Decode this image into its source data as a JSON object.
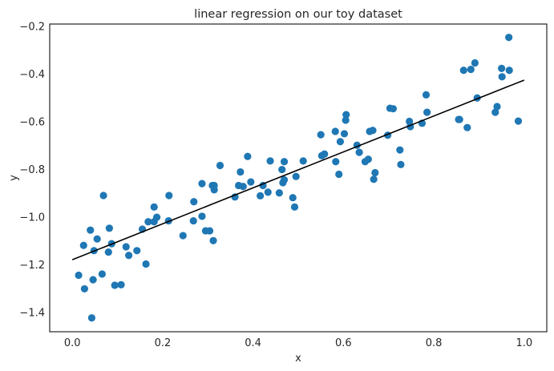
{
  "chart_data": {
    "type": "scatter",
    "title": "linear regression on our toy dataset",
    "xlabel": "x",
    "ylabel": "y",
    "xlim": [
      -0.05,
      1.05
    ],
    "ylim": [
      -1.48,
      -0.19
    ],
    "xticks": [
      0.0,
      0.2,
      0.4,
      0.6,
      0.8,
      1.0
    ],
    "xtick_labels": [
      "0.0",
      "0.2",
      "0.4",
      "0.6",
      "0.8",
      "1.0"
    ],
    "yticks": [
      -1.4,
      -1.2,
      -1.0,
      -0.8,
      -0.6,
      -0.4,
      -0.2
    ],
    "ytick_labels": [
      "−1.4",
      "−1.2",
      "−1.0",
      "−0.8",
      "−0.6",
      "−0.4",
      "−0.2"
    ],
    "grid": false,
    "point_color": "#1f77b4",
    "line_color": "#000000",
    "points": [
      [
        0.014,
        -1.243
      ],
      [
        0.025,
        -1.118
      ],
      [
        0.027,
        -1.3
      ],
      [
        0.04,
        -1.054
      ],
      [
        0.043,
        -1.422
      ],
      [
        0.046,
        -1.262
      ],
      [
        0.048,
        -1.14
      ],
      [
        0.055,
        -1.091
      ],
      [
        0.066,
        -1.238
      ],
      [
        0.069,
        -0.909
      ],
      [
        0.08,
        -1.146
      ],
      [
        0.082,
        -1.046
      ],
      [
        0.087,
        -1.111
      ],
      [
        0.094,
        -1.285
      ],
      [
        0.108,
        -1.283
      ],
      [
        0.119,
        -1.124
      ],
      [
        0.125,
        -1.16
      ],
      [
        0.143,
        -1.14
      ],
      [
        0.155,
        -1.05
      ],
      [
        0.163,
        -1.196
      ],
      [
        0.168,
        -1.019
      ],
      [
        0.181,
        -0.957
      ],
      [
        0.181,
        -1.019
      ],
      [
        0.187,
        -1.0
      ],
      [
        0.213,
        -1.015
      ],
      [
        0.214,
        -0.909
      ],
      [
        0.245,
        -1.077
      ],
      [
        0.268,
        -1.015
      ],
      [
        0.269,
        -0.935
      ],
      [
        0.287,
        -0.996
      ],
      [
        0.287,
        -0.859
      ],
      [
        0.295,
        -1.057
      ],
      [
        0.304,
        -1.057
      ],
      [
        0.31,
        -0.867
      ],
      [
        0.312,
        -1.098
      ],
      [
        0.314,
        -0.885
      ],
      [
        0.314,
        -0.867
      ],
      [
        0.327,
        -0.783
      ],
      [
        0.36,
        -0.915
      ],
      [
        0.368,
        -0.867
      ],
      [
        0.372,
        -0.81
      ],
      [
        0.378,
        -0.871
      ],
      [
        0.388,
        -0.745
      ],
      [
        0.395,
        -0.852
      ],
      [
        0.416,
        -0.91
      ],
      [
        0.422,
        -0.867
      ],
      [
        0.433,
        -0.895
      ],
      [
        0.438,
        -0.764
      ],
      [
        0.458,
        -0.898
      ],
      [
        0.464,
        -0.8
      ],
      [
        0.466,
        -0.855
      ],
      [
        0.469,
        -0.843
      ],
      [
        0.469,
        -0.767
      ],
      [
        0.488,
        -0.918
      ],
      [
        0.492,
        -0.957
      ],
      [
        0.495,
        -0.829
      ],
      [
        0.511,
        -0.764
      ],
      [
        0.55,
        -0.654
      ],
      [
        0.552,
        -0.742
      ],
      [
        0.558,
        -0.735
      ],
      [
        0.582,
        -0.64
      ],
      [
        0.583,
        -0.767
      ],
      [
        0.59,
        -0.82
      ],
      [
        0.593,
        -0.683
      ],
      [
        0.602,
        -0.65
      ],
      [
        0.605,
        -0.593
      ],
      [
        0.606,
        -0.57
      ],
      [
        0.63,
        -0.698
      ],
      [
        0.635,
        -0.728
      ],
      [
        0.648,
        -0.767
      ],
      [
        0.655,
        -0.757
      ],
      [
        0.658,
        -0.64
      ],
      [
        0.665,
        -0.636
      ],
      [
        0.667,
        -0.841
      ],
      [
        0.67,
        -0.813
      ],
      [
        0.698,
        -0.656
      ],
      [
        0.703,
        -0.543
      ],
      [
        0.71,
        -0.545
      ],
      [
        0.725,
        -0.718
      ],
      [
        0.727,
        -0.779
      ],
      [
        0.746,
        -0.598
      ],
      [
        0.748,
        -0.62
      ],
      [
        0.774,
        -0.606
      ],
      [
        0.783,
        -0.487
      ],
      [
        0.785,
        -0.56
      ],
      [
        0.855,
        -0.59
      ],
      [
        0.857,
        -0.59
      ],
      [
        0.866,
        -0.384
      ],
      [
        0.874,
        -0.624
      ],
      [
        0.882,
        -0.38
      ],
      [
        0.891,
        -0.353
      ],
      [
        0.896,
        -0.5
      ],
      [
        0.936,
        -0.56
      ],
      [
        0.94,
        -0.536
      ],
      [
        0.95,
        -0.376
      ],
      [
        0.951,
        -0.411
      ],
      [
        0.966,
        -0.246
      ],
      [
        0.967,
        -0.384
      ],
      [
        0.987,
        -0.597
      ]
    ],
    "regression_line": {
      "x": [
        0.0,
        1.0
      ],
      "y": [
        -1.178,
        -0.425
      ]
    }
  }
}
